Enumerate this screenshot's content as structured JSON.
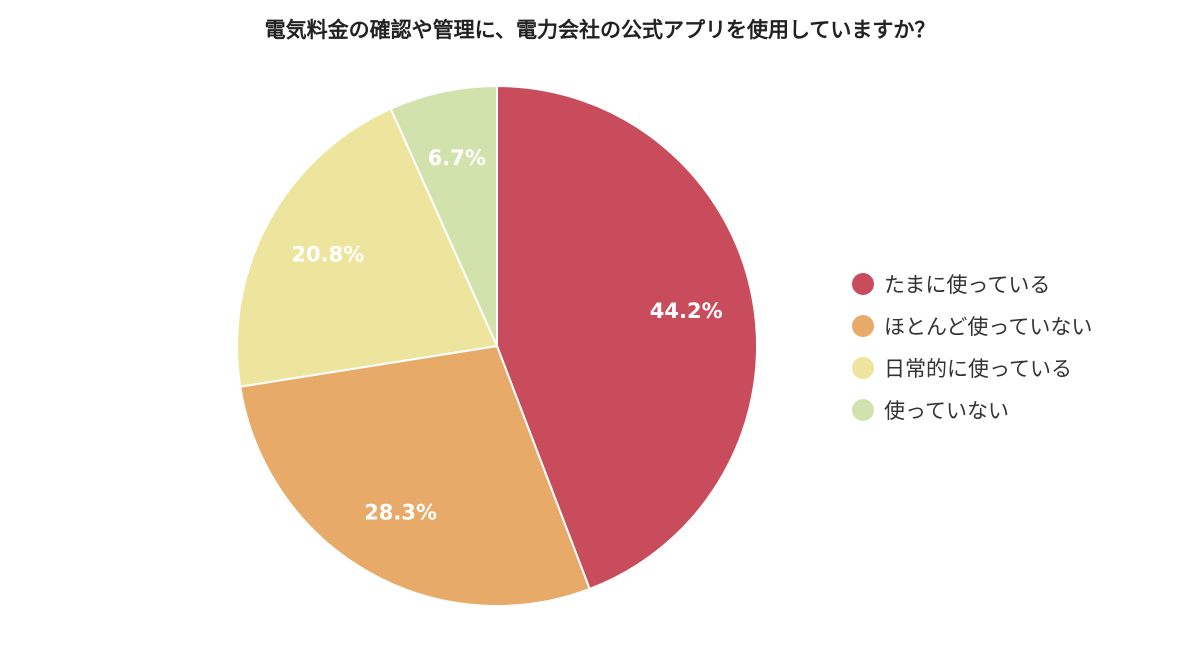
{
  "chart_data": {
    "type": "pie",
    "title": "電気料金の確認や管理に、電力会社の公式アプリを使用していますか？",
    "slices": [
      {
        "label": "たまに使っている",
        "value": 44.2,
        "value_label": "44.2%",
        "color": "#c84c5c"
      },
      {
        "label": "ほとんど使っていない",
        "value": 28.3,
        "value_label": "28.3%",
        "color": "#e8aa68"
      },
      {
        "label": "日常的に使っている",
        "value": 20.8,
        "value_label": "20.8%",
        "color": "#ede49e"
      },
      {
        "label": "使っていない",
        "value": 6.7,
        "value_label": "6.7%",
        "color": "#d2e2ad"
      }
    ],
    "start_angle": "12 o'clock",
    "direction": "clockwise",
    "legend_position": "right"
  }
}
